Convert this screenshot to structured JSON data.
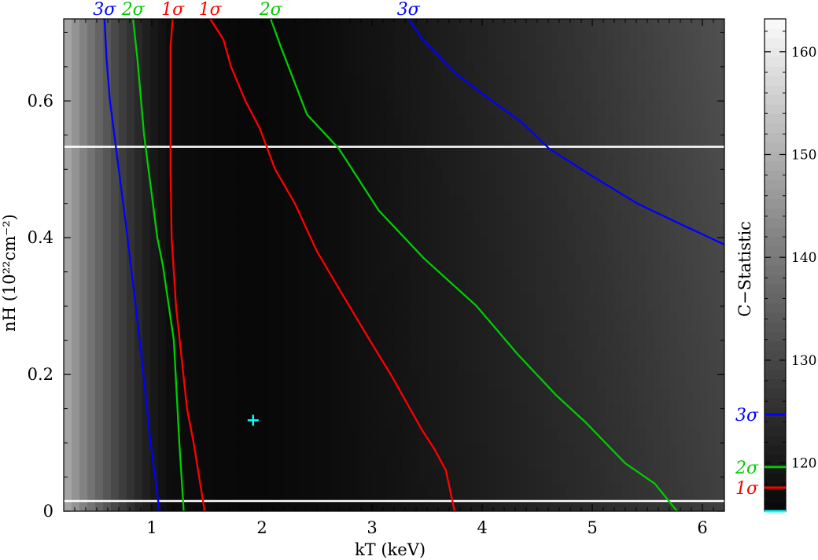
{
  "chart_data": {
    "type": "heatmap",
    "title": "",
    "xlabel": "kT (keV)",
    "ylabel": "nH (10²²cm⁻²)",
    "xlim": [
      0.2,
      6.2
    ],
    "ylim": [
      0,
      0.72
    ],
    "x_ticks": [
      "1",
      "2",
      "3",
      "4",
      "5",
      "6"
    ],
    "y_ticks": [
      "0",
      "0.2",
      "0.4",
      "0.6"
    ],
    "grid": false,
    "colorbar": {
      "label": "C−Statistic",
      "range": [
        115.3,
        163.2
      ],
      "ticks": [
        "120",
        "130",
        "140",
        "150",
        "160"
      ],
      "markers": [
        {
          "label": "3σ",
          "value": 124.7,
          "color": "#0000ff"
        },
        {
          "label": "2σ",
          "value": 119.6,
          "color": "#00cc00"
        },
        {
          "label": "1σ",
          "value": 117.6,
          "color": "#ff0000"
        },
        {
          "label": "",
          "value": 115.3,
          "color": "#00ffff"
        }
      ]
    },
    "reference_lines": [
      0.015,
      0.533
    ],
    "best_fit": {
      "x": 1.92,
      "y": 0.133,
      "color": "#00ffff"
    },
    "contours": [
      {
        "label": "3σ",
        "color": "#0000ff",
        "points": [
          [
            1.07,
            0
          ],
          [
            0.99,
            0.1
          ],
          [
            0.89,
            0.25
          ],
          [
            0.78,
            0.4
          ],
          [
            0.7,
            0.5
          ],
          [
            0.66,
            0.55
          ],
          [
            0.62,
            0.6
          ],
          [
            0.59,
            0.66
          ],
          [
            0.57,
            0.72
          ]
        ]
      },
      {
        "label": "2σ",
        "color": "#00cc00",
        "points": [
          [
            1.29,
            0
          ],
          [
            1.25,
            0.1
          ],
          [
            1.2,
            0.25
          ],
          [
            1.1,
            0.36
          ],
          [
            1.05,
            0.4
          ],
          [
            0.97,
            0.5
          ],
          [
            0.93,
            0.55
          ],
          [
            0.87,
            0.66
          ],
          [
            0.83,
            0.72
          ]
        ]
      },
      {
        "label": "1σ",
        "color": "#ff0000",
        "points": [
          [
            1.48,
            0
          ],
          [
            1.42,
            0.06
          ],
          [
            1.38,
            0.1
          ],
          [
            1.32,
            0.15
          ],
          [
            1.22,
            0.3
          ],
          [
            1.18,
            0.4
          ],
          [
            1.17,
            0.5
          ],
          [
            1.17,
            0.6
          ],
          [
            1.17,
            0.68
          ],
          [
            1.19,
            0.72
          ]
        ]
      },
      {
        "label": "1σ",
        "color": "#ff0000",
        "points": [
          [
            3.75,
            0
          ],
          [
            3.67,
            0.06
          ],
          [
            3.57,
            0.09
          ],
          [
            3.45,
            0.12
          ],
          [
            3.17,
            0.2
          ],
          [
            2.98,
            0.25
          ],
          [
            2.72,
            0.32
          ],
          [
            2.5,
            0.38
          ],
          [
            2.3,
            0.45
          ],
          [
            2.12,
            0.5
          ],
          [
            1.98,
            0.56
          ],
          [
            1.85,
            0.6
          ],
          [
            1.72,
            0.65
          ],
          [
            1.65,
            0.69
          ],
          [
            1.53,
            0.72
          ]
        ]
      },
      {
        "label": "2σ",
        "color": "#00cc00",
        "points": [
          [
            5.77,
            0
          ],
          [
            5.57,
            0.04
          ],
          [
            5.3,
            0.07
          ],
          [
            4.94,
            0.13
          ],
          [
            4.67,
            0.17
          ],
          [
            4.32,
            0.23
          ],
          [
            3.95,
            0.3
          ],
          [
            3.47,
            0.37
          ],
          [
            3.06,
            0.44
          ],
          [
            2.7,
            0.53
          ],
          [
            2.41,
            0.58
          ],
          [
            2.17,
            0.68
          ],
          [
            2.08,
            0.72
          ]
        ]
      },
      {
        "label": "3σ",
        "color": "#0000ff",
        "points": [
          [
            6.2,
            0.39
          ],
          [
            5.8,
            0.42
          ],
          [
            5.41,
            0.45
          ],
          [
            5,
            0.49
          ],
          [
            4.61,
            0.53
          ],
          [
            4.35,
            0.57
          ],
          [
            4.09,
            0.6
          ],
          [
            3.76,
            0.64
          ],
          [
            3.46,
            0.69
          ],
          [
            3.33,
            0.72
          ]
        ]
      }
    ]
  }
}
